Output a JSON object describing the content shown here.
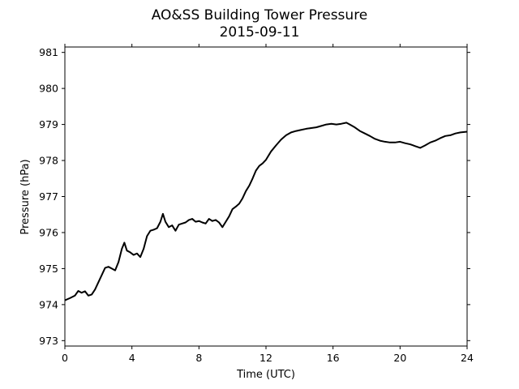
{
  "chart_data": {
    "type": "line",
    "title": "AO&SS Building Tower Pressure",
    "subtitle": "2015-09-11",
    "xlabel": "Time (UTC)",
    "ylabel": "Pressure (hPa)",
    "xlim": [
      0,
      24
    ],
    "ylim": [
      972.85,
      981.15
    ],
    "xticks": [
      0,
      4,
      8,
      12,
      16,
      20,
      24
    ],
    "yticks": [
      973,
      974,
      975,
      976,
      977,
      978,
      979,
      980,
      981
    ],
    "grid": false,
    "line_color": "#000000",
    "series": [
      {
        "x": [
          0,
          0.3,
          0.6,
          0.8,
          1.0,
          1.2,
          1.4,
          1.6,
          1.8,
          2.0,
          2.2,
          2.4,
          2.6,
          2.8,
          3.0,
          3.2,
          3.4,
          3.55,
          3.7,
          3.9,
          4.1,
          4.3,
          4.5,
          4.7,
          4.9,
          5.1,
          5.3,
          5.5,
          5.7,
          5.85,
          6.0,
          6.2,
          6.4,
          6.6,
          6.8,
          7.0,
          7.2,
          7.4,
          7.6,
          7.8,
          8.0,
          8.2,
          8.4,
          8.6,
          8.8,
          9.0,
          9.2,
          9.4,
          9.6,
          9.8,
          10.0,
          10.2,
          10.4,
          10.6,
          10.8,
          11.0,
          11.2,
          11.4,
          11.6,
          11.8,
          12.0,
          12.3,
          12.6,
          12.9,
          13.2,
          13.5,
          13.8,
          14.1,
          14.4,
          14.7,
          15.0,
          15.3,
          15.6,
          15.9,
          16.2,
          16.5,
          16.8,
          17.0,
          17.3,
          17.6,
          17.9,
          18.2,
          18.5,
          18.8,
          19.1,
          19.4,
          19.7,
          20.0,
          20.3,
          20.6,
          20.9,
          21.2,
          21.5,
          21.8,
          22.1,
          22.4,
          22.7,
          23.0,
          23.3,
          23.6,
          24.0
        ],
        "y": [
          974.12,
          974.18,
          974.25,
          974.38,
          974.33,
          974.37,
          974.25,
          974.28,
          974.42,
          974.62,
          974.82,
          975.02,
          975.05,
          975.0,
          974.95,
          975.18,
          975.55,
          975.72,
          975.5,
          975.45,
          975.38,
          975.42,
          975.32,
          975.55,
          975.9,
          976.05,
          976.08,
          976.12,
          976.3,
          976.52,
          976.3,
          976.15,
          976.2,
          976.05,
          976.22,
          976.25,
          976.28,
          976.35,
          976.38,
          976.3,
          976.32,
          976.28,
          976.25,
          976.38,
          976.32,
          976.35,
          976.28,
          976.15,
          976.3,
          976.45,
          976.65,
          976.72,
          976.8,
          976.95,
          977.15,
          977.3,
          977.5,
          977.72,
          977.85,
          977.92,
          978.02,
          978.25,
          978.42,
          978.58,
          978.7,
          978.78,
          978.82,
          978.85,
          978.88,
          978.9,
          978.92,
          978.96,
          979.0,
          979.02,
          979.0,
          979.02,
          979.05,
          979.0,
          978.92,
          978.82,
          978.75,
          978.68,
          978.6,
          978.55,
          978.52,
          978.5,
          978.5,
          978.52,
          978.48,
          978.45,
          978.4,
          978.35,
          978.42,
          978.5,
          978.55,
          978.62,
          978.68,
          978.7,
          978.75,
          978.78,
          978.8
        ]
      }
    ]
  }
}
